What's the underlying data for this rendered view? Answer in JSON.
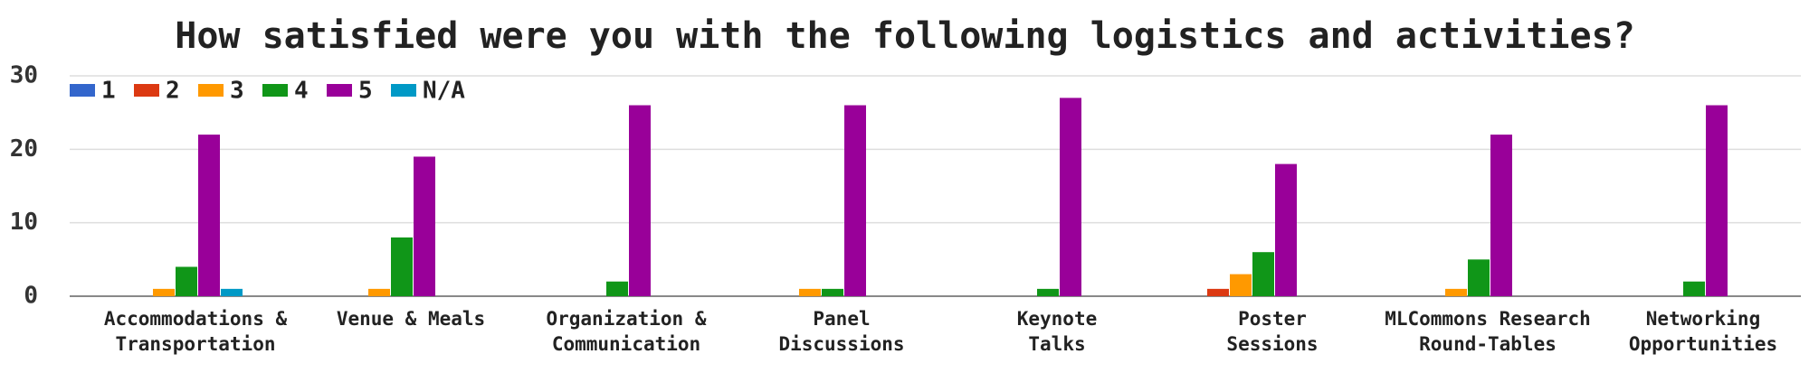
{
  "chart_data": {
    "type": "bar",
    "title": "How satisfied were you with the following logistics and activities?",
    "categories": [
      [
        "Accommodations &",
        "Transportation"
      ],
      [
        "Venue & Meals"
      ],
      [
        "Organization &",
        "Communication"
      ],
      [
        "Panel",
        "Discussions"
      ],
      [
        "Keynote",
        "Talks"
      ],
      [
        "Poster",
        "Sessions"
      ],
      [
        "MLCommons Research",
        "Round-Tables"
      ],
      [
        "Networking",
        "Opportunities"
      ]
    ],
    "series": [
      {
        "name": "1",
        "color": "#3366cc",
        "values": [
          0,
          0,
          0,
          0,
          0,
          0,
          0,
          0
        ]
      },
      {
        "name": "2",
        "color": "#dc3912",
        "values": [
          0,
          0,
          0,
          0,
          0,
          1,
          0,
          0
        ]
      },
      {
        "name": "3",
        "color": "#ff9900",
        "values": [
          1,
          1,
          0,
          1,
          0,
          3,
          1,
          0
        ]
      },
      {
        "name": "4",
        "color": "#109618",
        "values": [
          4,
          8,
          2,
          1,
          1,
          6,
          5,
          2
        ]
      },
      {
        "name": "5",
        "color": "#990099",
        "values": [
          22,
          19,
          26,
          26,
          27,
          18,
          22,
          26
        ]
      },
      {
        "name": "N/A",
        "color": "#0099c6",
        "values": [
          1,
          0,
          0,
          0,
          0,
          0,
          0,
          0
        ]
      }
    ],
    "ylim": [
      0,
      30
    ],
    "yticks": [
      0,
      10,
      20,
      30
    ],
    "grid": true,
    "legend": "top-left"
  }
}
